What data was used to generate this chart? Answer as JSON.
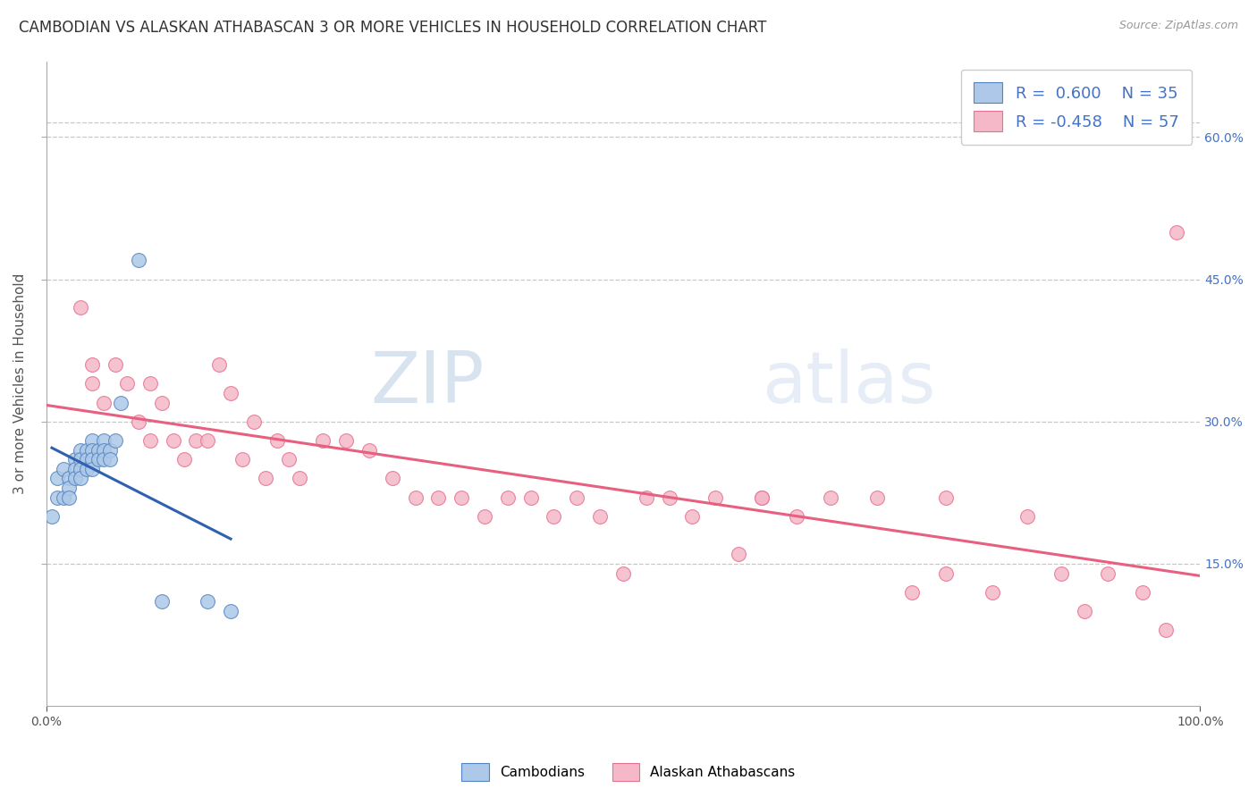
{
  "title": "CAMBODIAN VS ALASKAN ATHABASCAN 3 OR MORE VEHICLES IN HOUSEHOLD CORRELATION CHART",
  "source": "Source: ZipAtlas.com",
  "ylabel": "3 or more Vehicles in Household",
  "xlabel": "",
  "xlim": [
    0.0,
    1.0
  ],
  "ylim": [
    0.0,
    0.68
  ],
  "ytick_labels_right": [
    "15.0%",
    "30.0%",
    "45.0%",
    "60.0%"
  ],
  "ytick_positions_right": [
    0.15,
    0.3,
    0.45,
    0.6
  ],
  "grid_color": "#c8c8c8",
  "background_color": "#ffffff",
  "cambodian_color": "#adc8e8",
  "athabascan_color": "#f4b8c8",
  "cambodian_edge_color": "#5585c0",
  "athabascan_edge_color": "#e87090",
  "cambodian_line_color": "#3060b0",
  "athabascan_line_color": "#e86080",
  "legend_color": "#4472c4",
  "cambodian_x": [
    0.005,
    0.01,
    0.01,
    0.015,
    0.015,
    0.02,
    0.02,
    0.02,
    0.025,
    0.025,
    0.025,
    0.03,
    0.03,
    0.03,
    0.03,
    0.035,
    0.035,
    0.035,
    0.04,
    0.04,
    0.04,
    0.04,
    0.045,
    0.045,
    0.05,
    0.05,
    0.05,
    0.055,
    0.055,
    0.06,
    0.065,
    0.08,
    0.1,
    0.14,
    0.16
  ],
  "cambodian_y": [
    0.2,
    0.22,
    0.24,
    0.22,
    0.25,
    0.24,
    0.23,
    0.22,
    0.26,
    0.25,
    0.24,
    0.27,
    0.26,
    0.25,
    0.24,
    0.27,
    0.26,
    0.25,
    0.28,
    0.27,
    0.26,
    0.25,
    0.27,
    0.26,
    0.28,
    0.27,
    0.26,
    0.27,
    0.26,
    0.28,
    0.32,
    0.47,
    0.11,
    0.11,
    0.1
  ],
  "athabascan_x": [
    0.03,
    0.04,
    0.04,
    0.05,
    0.06,
    0.07,
    0.08,
    0.09,
    0.09,
    0.1,
    0.11,
    0.12,
    0.13,
    0.14,
    0.15,
    0.16,
    0.17,
    0.18,
    0.19,
    0.2,
    0.21,
    0.22,
    0.24,
    0.26,
    0.28,
    0.3,
    0.32,
    0.34,
    0.36,
    0.38,
    0.4,
    0.42,
    0.44,
    0.46,
    0.48,
    0.5,
    0.52,
    0.54,
    0.56,
    0.58,
    0.6,
    0.62,
    0.65,
    0.68,
    0.72,
    0.75,
    0.78,
    0.82,
    0.85,
    0.88,
    0.9,
    0.92,
    0.95,
    0.97,
    0.98,
    0.78,
    0.62
  ],
  "athabascan_y": [
    0.42,
    0.36,
    0.34,
    0.32,
    0.36,
    0.34,
    0.3,
    0.34,
    0.28,
    0.32,
    0.28,
    0.26,
    0.28,
    0.28,
    0.36,
    0.33,
    0.26,
    0.3,
    0.24,
    0.28,
    0.26,
    0.24,
    0.28,
    0.28,
    0.27,
    0.24,
    0.22,
    0.22,
    0.22,
    0.2,
    0.22,
    0.22,
    0.2,
    0.22,
    0.2,
    0.14,
    0.22,
    0.22,
    0.2,
    0.22,
    0.16,
    0.22,
    0.2,
    0.22,
    0.22,
    0.12,
    0.14,
    0.12,
    0.2,
    0.14,
    0.1,
    0.14,
    0.12,
    0.08,
    0.5,
    0.22,
    0.22
  ],
  "title_fontsize": 12,
  "axis_fontsize": 11,
  "tick_fontsize": 10,
  "legend_fontsize": 13
}
